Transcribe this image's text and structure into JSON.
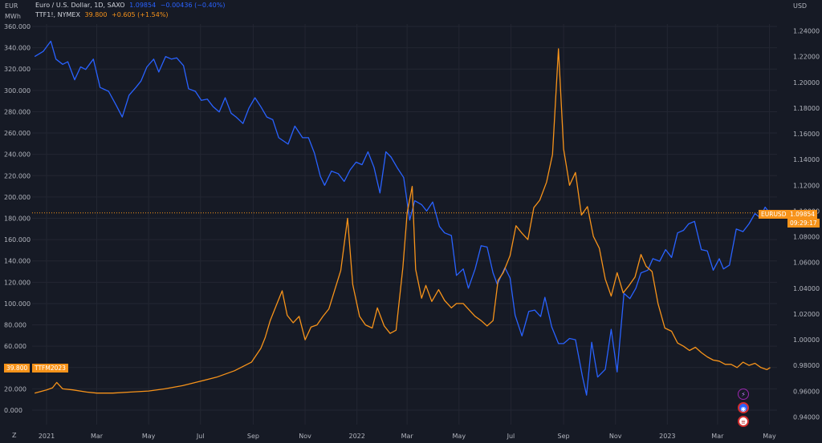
{
  "legend": {
    "eur": {
      "name": "Euro / U.S. Dollar, 1D, SAXO",
      "value": "1.09854",
      "change": "−0.00436 (−0.40%)"
    },
    "ttf": {
      "name": "TTF1!, NYMEX",
      "value": "39.800",
      "change": "+0.605 (+1.54%)"
    }
  },
  "units": {
    "left_top": "EUR",
    "left_sub": "MWh",
    "right_top": "USD",
    "corner": "Z"
  },
  "tags": {
    "eurusd_label": "EURUSD",
    "eurusd_value": "1.09854",
    "eurusd_timer": "09:29:17",
    "ttf_value": "39.800",
    "ttf_label": "TTFM2023"
  },
  "icons": [
    "lightning-icon",
    "globe-icon",
    "us-flag-icon"
  ],
  "chart_data": {
    "type": "line",
    "x_ticks": [
      "2021",
      "Mar",
      "May",
      "Jul",
      "Sep",
      "Nov",
      "2022",
      "Mar",
      "May",
      "Jul",
      "Sep",
      "Nov",
      "2023",
      "Mar",
      "May"
    ],
    "left_axis": {
      "ticks": [
        "360.000",
        "340.000",
        "320.000",
        "300.000",
        "280.000",
        "260.000",
        "240.000",
        "220.000",
        "200.000",
        "180.000",
        "160.000",
        "140.000",
        "120.000",
        "100.000",
        "80.000",
        "60.000",
        "40.000",
        "20.000",
        "0.000"
      ],
      "range": [
        0,
        360
      ]
    },
    "right_axis": {
      "ticks": [
        "1.24000",
        "1.22000",
        "1.20000",
        "1.18000",
        "1.16000",
        "1.14000",
        "1.12000",
        "1.10000",
        "1.08000",
        "1.06000",
        "1.04000",
        "1.02000",
        "1.00000",
        "0.98000",
        "0.96000",
        "0.94000"
      ],
      "range": [
        0.94,
        1.24
      ]
    },
    "colors": {
      "eur": "#2962ff",
      "ttf": "#f7931a",
      "bg": "#161a25",
      "grid": "#232632"
    },
    "series": [
      {
        "name": "Euro / U.S. Dollar",
        "axis": "right",
        "points": [
          [
            "2020-12-18",
            1.22
          ],
          [
            "2020-12-28",
            1.224
          ],
          [
            "2021-01-06",
            1.232
          ],
          [
            "2021-01-12",
            1.218
          ],
          [
            "2021-01-20",
            1.214
          ],
          [
            "2021-01-26",
            1.216
          ],
          [
            "2021-02-03",
            1.202
          ],
          [
            "2021-02-10",
            1.212
          ],
          [
            "2021-02-16",
            1.21
          ],
          [
            "2021-02-25",
            1.218
          ],
          [
            "2021-03-05",
            1.196
          ],
          [
            "2021-03-15",
            1.193
          ],
          [
            "2021-03-24",
            1.182
          ],
          [
            "2021-03-31",
            1.173
          ],
          [
            "2021-04-08",
            1.19
          ],
          [
            "2021-04-16",
            1.196
          ],
          [
            "2021-04-22",
            1.201
          ],
          [
            "2021-04-29",
            1.212
          ],
          [
            "2021-05-07",
            1.218
          ],
          [
            "2021-05-13",
            1.208
          ],
          [
            "2021-05-21",
            1.22
          ],
          [
            "2021-05-28",
            1.218
          ],
          [
            "2021-06-03",
            1.219
          ],
          [
            "2021-06-11",
            1.213
          ],
          [
            "2021-06-17",
            1.195
          ],
          [
            "2021-06-25",
            1.193
          ],
          [
            "2021-07-02",
            1.186
          ],
          [
            "2021-07-09",
            1.187
          ],
          [
            "2021-07-16",
            1.181
          ],
          [
            "2021-07-23",
            1.177
          ],
          [
            "2021-07-30",
            1.188
          ],
          [
            "2021-08-06",
            1.176
          ],
          [
            "2021-08-12",
            1.173
          ],
          [
            "2021-08-20",
            1.168
          ],
          [
            "2021-08-27",
            1.18
          ],
          [
            "2021-09-03",
            1.188
          ],
          [
            "2021-09-10",
            1.181
          ],
          [
            "2021-09-17",
            1.173
          ],
          [
            "2021-09-24",
            1.171
          ],
          [
            "2021-10-01",
            1.157
          ],
          [
            "2021-10-12",
            1.152
          ],
          [
            "2021-10-20",
            1.166
          ],
          [
            "2021-10-29",
            1.157
          ],
          [
            "2021-11-05",
            1.157
          ],
          [
            "2021-11-12",
            1.145
          ],
          [
            "2021-11-19",
            1.127
          ],
          [
            "2021-11-24",
            1.12
          ],
          [
            "2021-12-02",
            1.131
          ],
          [
            "2021-12-10",
            1.129
          ],
          [
            "2021-12-17",
            1.123
          ],
          [
            "2021-12-24",
            1.132
          ],
          [
            "2021-12-31",
            1.138
          ],
          [
            "2022-01-07",
            1.136
          ],
          [
            "2022-01-14",
            1.146
          ],
          [
            "2022-01-21",
            1.134
          ],
          [
            "2022-01-28",
            1.114
          ],
          [
            "2022-02-04",
            1.146
          ],
          [
            "2022-02-10",
            1.142
          ],
          [
            "2022-02-18",
            1.133
          ],
          [
            "2022-02-25",
            1.126
          ],
          [
            "2022-03-04",
            1.093
          ],
          [
            "2022-03-10",
            1.108
          ],
          [
            "2022-03-18",
            1.105
          ],
          [
            "2022-03-24",
            1.1
          ],
          [
            "2022-03-31",
            1.107
          ],
          [
            "2022-04-08",
            1.088
          ],
          [
            "2022-04-14",
            1.083
          ],
          [
            "2022-04-22",
            1.081
          ],
          [
            "2022-04-28",
            1.05
          ],
          [
            "2022-05-06",
            1.055
          ],
          [
            "2022-05-12",
            1.04
          ],
          [
            "2022-05-20",
            1.055
          ],
          [
            "2022-05-27",
            1.073
          ],
          [
            "2022-06-03",
            1.072
          ],
          [
            "2022-06-10",
            1.052
          ],
          [
            "2022-06-15",
            1.043
          ],
          [
            "2022-06-24",
            1.056
          ],
          [
            "2022-06-30",
            1.048
          ],
          [
            "2022-07-06",
            1.019
          ],
          [
            "2022-07-14",
            1.003
          ],
          [
            "2022-07-22",
            1.022
          ],
          [
            "2022-07-29",
            1.023
          ],
          [
            "2022-08-05",
            1.018
          ],
          [
            "2022-08-10",
            1.033
          ],
          [
            "2022-08-18",
            1.01
          ],
          [
            "2022-08-26",
            0.997
          ],
          [
            "2022-09-01",
            0.997
          ],
          [
            "2022-09-08",
            1.001
          ],
          [
            "2022-09-15",
            1.0
          ],
          [
            "2022-09-23",
            0.972
          ],
          [
            "2022-09-28",
            0.957
          ],
          [
            "2022-10-04",
            0.998
          ],
          [
            "2022-10-11",
            0.971
          ],
          [
            "2022-10-20",
            0.977
          ],
          [
            "2022-10-27",
            1.008
          ],
          [
            "2022-11-03",
            0.975
          ],
          [
            "2022-11-11",
            1.036
          ],
          [
            "2022-11-18",
            1.032
          ],
          [
            "2022-11-25",
            1.04
          ],
          [
            "2022-12-01",
            1.052
          ],
          [
            "2022-12-09",
            1.054
          ],
          [
            "2022-12-15",
            1.063
          ],
          [
            "2022-12-23",
            1.061
          ],
          [
            "2022-12-30",
            1.07
          ],
          [
            "2023-01-06",
            1.064
          ],
          [
            "2023-01-13",
            1.083
          ],
          [
            "2023-01-20",
            1.085
          ],
          [
            "2023-01-26",
            1.09
          ],
          [
            "2023-02-02",
            1.092
          ],
          [
            "2023-02-10",
            1.07
          ],
          [
            "2023-02-17",
            1.069
          ],
          [
            "2023-02-24",
            1.054
          ],
          [
            "2023-03-03",
            1.063
          ],
          [
            "2023-03-08",
            1.055
          ],
          [
            "2023-03-15",
            1.058
          ],
          [
            "2023-03-23",
            1.086
          ],
          [
            "2023-03-31",
            1.084
          ],
          [
            "2023-04-07",
            1.09
          ],
          [
            "2023-04-14",
            1.098
          ],
          [
            "2023-04-20",
            1.095
          ],
          [
            "2023-04-26",
            1.103
          ],
          [
            "2023-05-02",
            1.098
          ]
        ]
      },
      {
        "name": "TTF1!, NYMEX",
        "axis": "left",
        "points": [
          [
            "2020-12-18",
            16
          ],
          [
            "2021-01-01",
            19
          ],
          [
            "2021-01-08",
            21
          ],
          [
            "2021-01-13",
            26
          ],
          [
            "2021-01-20",
            20
          ],
          [
            "2021-02-01",
            19
          ],
          [
            "2021-02-17",
            17
          ],
          [
            "2021-03-01",
            16
          ],
          [
            "2021-03-20",
            16
          ],
          [
            "2021-04-10",
            17
          ],
          [
            "2021-05-01",
            18
          ],
          [
            "2021-05-20",
            20
          ],
          [
            "2021-06-10",
            23
          ],
          [
            "2021-06-30",
            27
          ],
          [
            "2021-07-20",
            31
          ],
          [
            "2021-08-10",
            37
          ],
          [
            "2021-08-30",
            45
          ],
          [
            "2021-09-10",
            58
          ],
          [
            "2021-09-15",
            68
          ],
          [
            "2021-09-21",
            84
          ],
          [
            "2021-09-28",
            98
          ],
          [
            "2021-10-05",
            112
          ],
          [
            "2021-10-11",
            89
          ],
          [
            "2021-10-18",
            82
          ],
          [
            "2021-10-25",
            88
          ],
          [
            "2021-11-01",
            66
          ],
          [
            "2021-11-08",
            78
          ],
          [
            "2021-11-15",
            80
          ],
          [
            "2021-11-22",
            88
          ],
          [
            "2021-11-29",
            95
          ],
          [
            "2021-12-06",
            113
          ],
          [
            "2021-12-13",
            131
          ],
          [
            "2021-12-21",
            180
          ],
          [
            "2021-12-27",
            118
          ],
          [
            "2022-01-04",
            88
          ],
          [
            "2022-01-11",
            80
          ],
          [
            "2022-01-19",
            77
          ],
          [
            "2022-01-25",
            96
          ],
          [
            "2022-02-02",
            79
          ],
          [
            "2022-02-09",
            72
          ],
          [
            "2022-02-16",
            75
          ],
          [
            "2022-02-24",
            134
          ],
          [
            "2022-03-01",
            185
          ],
          [
            "2022-03-07",
            210
          ],
          [
            "2022-03-11",
            132
          ],
          [
            "2022-03-18",
            105
          ],
          [
            "2022-03-23",
            117
          ],
          [
            "2022-03-30",
            102
          ],
          [
            "2022-04-07",
            113
          ],
          [
            "2022-04-14",
            103
          ],
          [
            "2022-04-22",
            96
          ],
          [
            "2022-04-28",
            100
          ],
          [
            "2022-05-06",
            100
          ],
          [
            "2022-05-13",
            94
          ],
          [
            "2022-05-20",
            88
          ],
          [
            "2022-05-27",
            84
          ],
          [
            "2022-06-03",
            79
          ],
          [
            "2022-06-10",
            84
          ],
          [
            "2022-06-16",
            122
          ],
          [
            "2022-06-22",
            129
          ],
          [
            "2022-06-30",
            145
          ],
          [
            "2022-07-07",
            173
          ],
          [
            "2022-07-14",
            166
          ],
          [
            "2022-07-21",
            160
          ],
          [
            "2022-07-28",
            190
          ],
          [
            "2022-08-04",
            197
          ],
          [
            "2022-08-12",
            214
          ],
          [
            "2022-08-19",
            240
          ],
          [
            "2022-08-26",
            339
          ],
          [
            "2022-09-01",
            245
          ],
          [
            "2022-09-08",
            211
          ],
          [
            "2022-09-15",
            223
          ],
          [
            "2022-09-22",
            183
          ],
          [
            "2022-09-29",
            191
          ],
          [
            "2022-10-06",
            163
          ],
          [
            "2022-10-13",
            152
          ],
          [
            "2022-10-20",
            123
          ],
          [
            "2022-10-27",
            107
          ],
          [
            "2022-11-03",
            129
          ],
          [
            "2022-11-10",
            110
          ],
          [
            "2022-11-17",
            117
          ],
          [
            "2022-11-24",
            125
          ],
          [
            "2022-12-01",
            146
          ],
          [
            "2022-12-07",
            135
          ],
          [
            "2022-12-14",
            130
          ],
          [
            "2022-12-21",
            100
          ],
          [
            "2022-12-29",
            77
          ],
          [
            "2023-01-06",
            74
          ],
          [
            "2023-01-13",
            63
          ],
          [
            "2023-01-20",
            60
          ],
          [
            "2023-01-27",
            56
          ],
          [
            "2023-02-03",
            59
          ],
          [
            "2023-02-10",
            54
          ],
          [
            "2023-02-17",
            50
          ],
          [
            "2023-02-24",
            47
          ],
          [
            "2023-03-03",
            46
          ],
          [
            "2023-03-10",
            43
          ],
          [
            "2023-03-17",
            43
          ],
          [
            "2023-03-24",
            40
          ],
          [
            "2023-03-31",
            45
          ],
          [
            "2023-04-07",
            42
          ],
          [
            "2023-04-14",
            44
          ],
          [
            "2023-04-21",
            40
          ],
          [
            "2023-04-28",
            38
          ],
          [
            "2023-05-02",
            40
          ]
        ]
      }
    ],
    "current_price_line": {
      "series": "Euro / U.S. Dollar",
      "value": 1.09854
    }
  }
}
